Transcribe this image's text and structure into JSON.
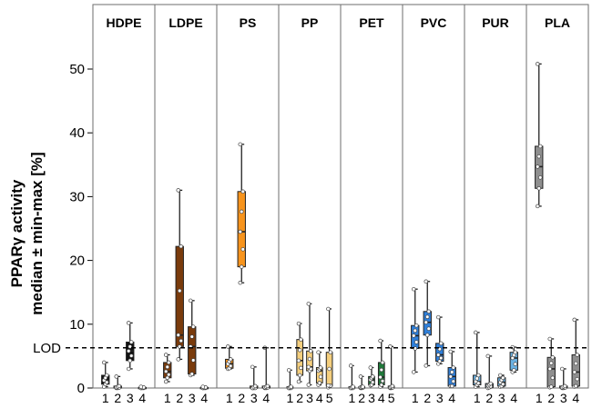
{
  "chart_data": {
    "type": "box",
    "ylabel_line1": "PPARγ activity",
    "ylabel_line2": "median ± min-max [%]",
    "ylim": [
      0,
      55
    ],
    "yticks": [
      0,
      10,
      20,
      30,
      40,
      50
    ],
    "lod": {
      "label": "LOD",
      "value": 6.3
    },
    "groups": [
      {
        "name": "HDPE",
        "samples": [
          {
            "label": "1",
            "min": 0.2,
            "q1": 0.6,
            "median": 1.2,
            "q3": 2.0,
            "max": 4.0,
            "color": "#111111"
          },
          {
            "label": "2",
            "min": 0,
            "q1": 0,
            "median": 0.1,
            "q3": 0.3,
            "max": 1.8,
            "color": "#111111"
          },
          {
            "label": "3",
            "min": 3.0,
            "q1": 4.3,
            "median": 5.8,
            "q3": 7.2,
            "max": 10.2,
            "color": "#111111"
          },
          {
            "label": "4",
            "min": 0,
            "q1": 0,
            "median": 0,
            "q3": 0.1,
            "max": 0.2,
            "color": "#111111"
          }
        ]
      },
      {
        "name": "LDPE",
        "samples": [
          {
            "label": "1",
            "min": 1.0,
            "q1": 1.6,
            "median": 2.6,
            "q3": 4.0,
            "max": 5.2,
            "color": "#7a3b0c"
          },
          {
            "label": "2",
            "min": 4.5,
            "q1": 6.5,
            "median": 8.3,
            "q3": 22.2,
            "max": 31.0,
            "color": "#7a3b0c"
          },
          {
            "label": "3",
            "min": 2.0,
            "q1": 2.2,
            "median": 6.5,
            "q3": 9.6,
            "max": 13.7,
            "color": "#7a3b0c"
          },
          {
            "label": "4",
            "min": 0,
            "q1": 0,
            "median": 0,
            "q3": 0.1,
            "max": 0.2,
            "color": "#7a3b0c"
          }
        ]
      },
      {
        "name": "PS",
        "samples": [
          {
            "label": "1",
            "min": 3.0,
            "q1": 3.1,
            "median": 3.8,
            "q3": 4.5,
            "max": 6.5,
            "color": "#f7941d"
          },
          {
            "label": "2",
            "min": 16.5,
            "q1": 19.0,
            "median": 24.5,
            "q3": 30.8,
            "max": 38.2,
            "color": "#f7941d"
          },
          {
            "label": "3",
            "min": 0,
            "q1": 0,
            "median": 0,
            "q3": 0.3,
            "max": 3.3,
            "color": "#f7941d"
          },
          {
            "label": "4",
            "min": 0,
            "q1": 0,
            "median": 0.1,
            "q3": 0.3,
            "max": 6.3,
            "color": "#f7941d"
          }
        ]
      },
      {
        "name": "PP",
        "samples": [
          {
            "label": "1",
            "min": 0,
            "q1": 0,
            "median": 0,
            "q3": 0.2,
            "max": 2.8,
            "color": "#f5cf7e"
          },
          {
            "label": "2",
            "min": 1.0,
            "q1": 2.0,
            "median": 4.3,
            "q3": 7.6,
            "max": 10.1,
            "color": "#f5cf7e"
          },
          {
            "label": "3",
            "min": 0.5,
            "q1": 2.7,
            "median": 3.3,
            "q3": 5.8,
            "max": 13.2,
            "color": "#f5cf7e"
          },
          {
            "label": "4",
            "min": 0.5,
            "q1": 0.8,
            "median": 2.7,
            "q3": 3.2,
            "max": 5.6,
            "color": "#f5cf7e"
          },
          {
            "label": "5",
            "min": 0.1,
            "q1": 0.3,
            "median": 0.4,
            "q3": 5.6,
            "max": 12.4,
            "color": "#f5cf7e"
          }
        ]
      },
      {
        "name": "PET",
        "samples": [
          {
            "label": "1",
            "min": 0,
            "q1": 0,
            "median": 0,
            "q3": 0.2,
            "max": 3.5,
            "color": "#1f7a3a"
          },
          {
            "label": "2",
            "min": 0,
            "q1": 0,
            "median": 0.1,
            "q3": 0.2,
            "max": 1.8,
            "color": "#1f7a3a"
          },
          {
            "label": "3",
            "min": 0.4,
            "q1": 0.5,
            "median": 1.3,
            "q3": 1.8,
            "max": 3.2,
            "color": "#1f7a3a"
          },
          {
            "label": "4",
            "min": 0.2,
            "q1": 0.5,
            "median": 1.7,
            "q3": 4.0,
            "max": 7.4,
            "color": "#1f7a3a"
          },
          {
            "label": "5",
            "min": 0,
            "q1": 0,
            "median": 0.1,
            "q3": 0.3,
            "max": 6.5,
            "color": "#1f7a3a"
          }
        ]
      },
      {
        "name": "PVC",
        "samples": [
          {
            "label": "1",
            "min": 2.5,
            "q1": 6.2,
            "median": 8.2,
            "q3": 9.8,
            "max": 15.5,
            "color": "#2f7fd9"
          },
          {
            "label": "2",
            "min": 3.5,
            "q1": 8.3,
            "median": 10.3,
            "q3": 12.0,
            "max": 16.7,
            "color": "#2f7fd9"
          },
          {
            "label": "3",
            "min": 3.8,
            "q1": 4.2,
            "median": 5.2,
            "q3": 7.0,
            "max": 11.1,
            "color": "#2f7fd9"
          },
          {
            "label": "4",
            "min": 0.3,
            "q1": 0.3,
            "median": 1.8,
            "q3": 3.2,
            "max": 5.7,
            "color": "#2f7fd9"
          }
        ]
      },
      {
        "name": "PUR",
        "samples": [
          {
            "label": "1",
            "min": 0.2,
            "q1": 0.5,
            "median": 1.0,
            "q3": 2.0,
            "max": 8.7,
            "color": "#6ab2e4"
          },
          {
            "label": "2",
            "min": 0,
            "q1": 0.1,
            "median": 0.4,
            "q3": 0.7,
            "max": 5.0,
            "color": "#6ab2e4"
          },
          {
            "label": "3",
            "min": 0.2,
            "q1": 0.3,
            "median": 0.9,
            "q3": 1.6,
            "max": 2.0,
            "color": "#6ab2e4"
          },
          {
            "label": "4",
            "min": 2.5,
            "q1": 2.8,
            "median": 4.7,
            "q3": 5.6,
            "max": 6.4,
            "color": "#6ab2e4"
          }
        ]
      },
      {
        "name": "PLA",
        "samples": [
          {
            "label": "1",
            "min": 28.5,
            "q1": 31.3,
            "median": 34.7,
            "q3": 37.9,
            "max": 50.8,
            "color": "#8f8f8f"
          },
          {
            "label": "2",
            "min": 0.1,
            "q1": 0.2,
            "median": 3.0,
            "q3": 4.8,
            "max": 7.7,
            "color": "#8f8f8f"
          },
          {
            "label": "3",
            "min": 0,
            "q1": 0,
            "median": 0.1,
            "q3": 0.3,
            "max": 3.0,
            "color": "#8f8f8f"
          },
          {
            "label": "4",
            "min": 0.2,
            "q1": 0.3,
            "median": 2.5,
            "q3": 5.2,
            "max": 10.7,
            "color": "#8f8f8f"
          }
        ]
      }
    ]
  }
}
